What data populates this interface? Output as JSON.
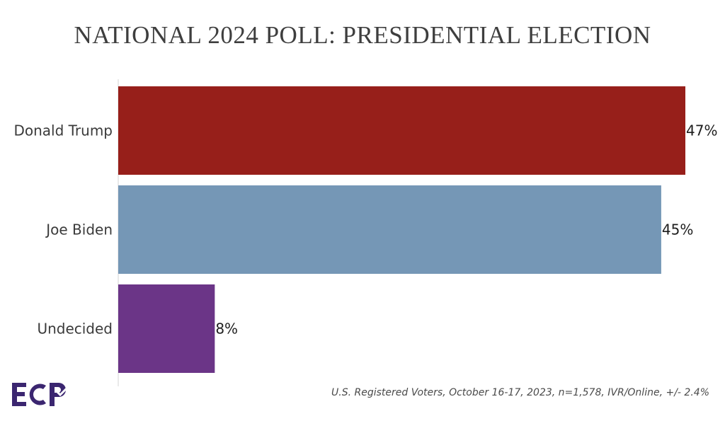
{
  "chart_data": {
    "type": "bar",
    "orientation": "horizontal",
    "title": "NATIONAL 2024 POLL: PRESIDENTIAL ELECTION",
    "categories": [
      "Donald Trump",
      "Joe Biden",
      "Undecided"
    ],
    "values": [
      47,
      45,
      8
    ],
    "value_labels": [
      "47%",
      "45%",
      "8%"
    ],
    "colors": [
      "#971f1a",
      "#7597b6",
      "#6b3587"
    ],
    "xlim": [
      0,
      47
    ],
    "grid": false,
    "legend": "none"
  },
  "footnote": "U.S. Registered Voters, October 16-17, 2023, n=1,578, IVR/Online, +/- 2.4%",
  "logo": {
    "text": "ECP",
    "color": "#3b2670"
  }
}
